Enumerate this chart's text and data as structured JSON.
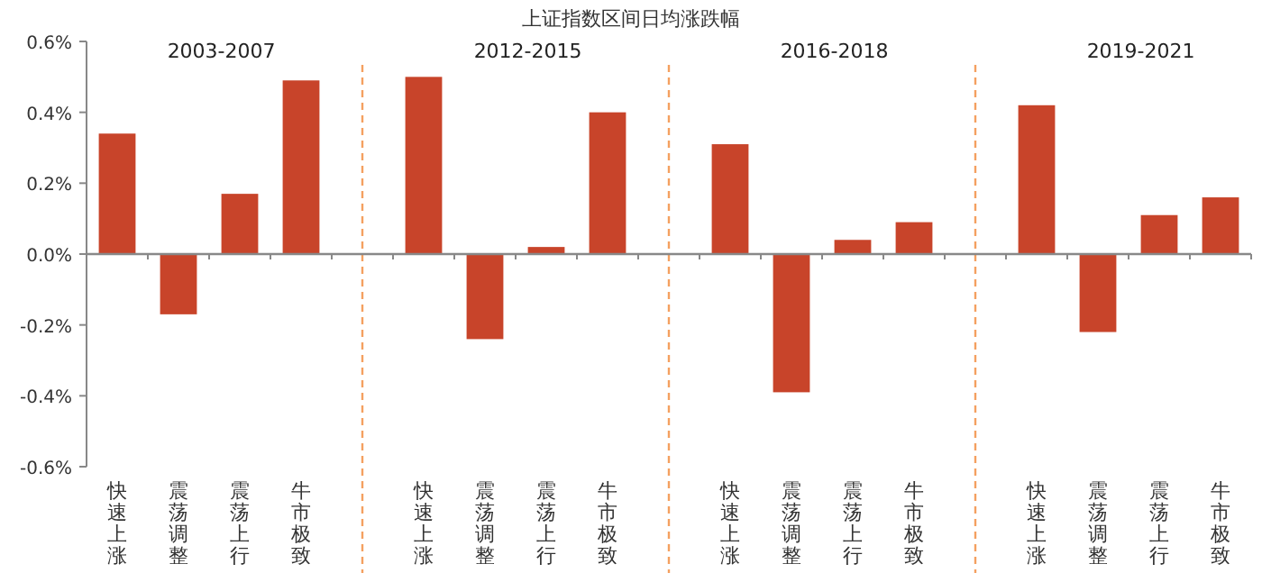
{
  "chart_data": {
    "type": "bar",
    "title": "上证指数区间日均涨跌幅",
    "categories": [
      "快速上涨",
      "震荡调整",
      "震荡上行",
      "牛市极致",
      null,
      "快速上涨",
      "震荡调整",
      "震荡上行",
      "牛市极致",
      null,
      "快速上涨",
      "震荡调整",
      "震荡上行",
      "牛市极致",
      null,
      "快速上涨",
      "震荡调整",
      "震荡上行",
      "牛市极致"
    ],
    "values": [
      0.34,
      -0.17,
      0.17,
      0.49,
      null,
      0.5,
      -0.24,
      0.02,
      0.4,
      null,
      0.31,
      -0.39,
      0.04,
      0.09,
      null,
      0.42,
      -0.22,
      0.11,
      0.16
    ],
    "color": "#c8442a",
    "ylim": [
      -0.6,
      0.6
    ],
    "yticks": [
      {
        "value": -0.6,
        "label": "-0.6%"
      },
      {
        "value": -0.4,
        "label": "-0.4%"
      },
      {
        "value": -0.2,
        "label": "-0.2%"
      },
      {
        "value": 0,
        "label": "0.0%"
      },
      {
        "value": 0.2,
        "label": "0.2%"
      },
      {
        "value": 0.4,
        "label": "0.4%"
      },
      {
        "value": 0.6,
        "label": "0.6%"
      }
    ],
    "annotations": [
      "2003-2007",
      "2012-2015",
      "2016-2018",
      "2019-2021"
    ],
    "grid": "x"
  }
}
